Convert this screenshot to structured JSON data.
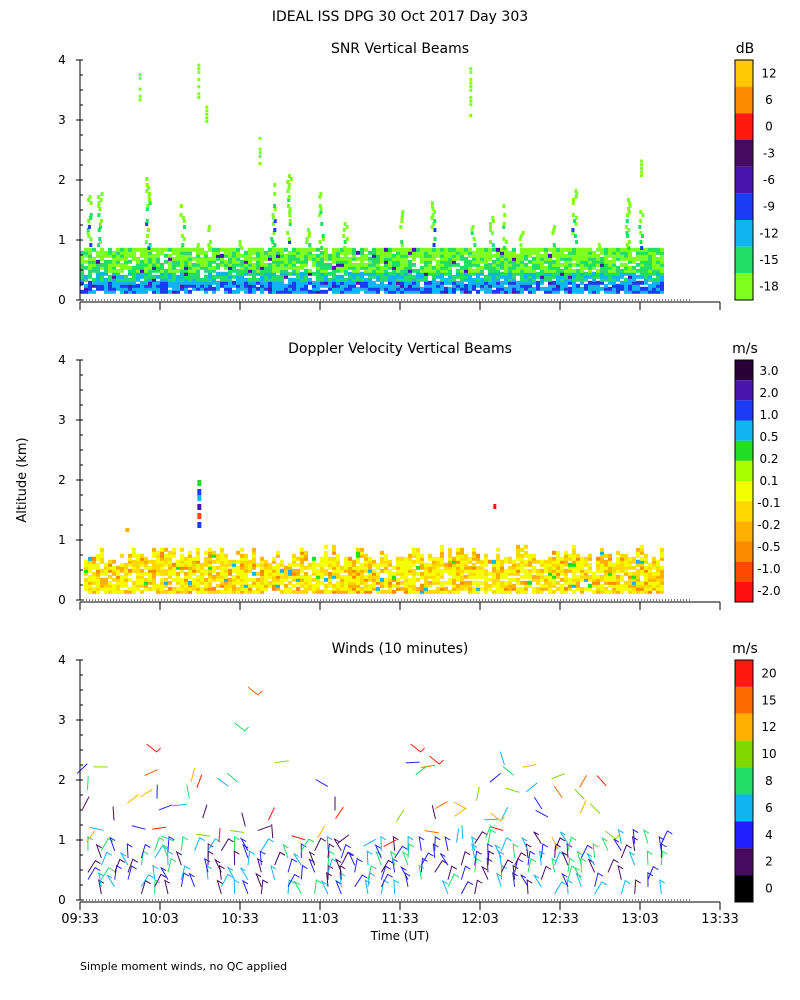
{
  "figure_title": "IDEAL ISS DPG  30 Oct 2017 Day 303",
  "y_axis_label": "Altitude (km)",
  "x_axis_label": "Time (UT)",
  "footnote": "Simple moment winds, no QC applied",
  "colors": {
    "snr_scale": [
      "#7fff1f",
      "#22dd66",
      "#10b4f0",
      "#1a3cf5",
      "#4a14b0",
      "#460a60",
      "#ff1a10",
      "#ff8c00",
      "#ffc800"
    ],
    "vel_scale": [
      "#ff1010",
      "#ff4a00",
      "#ff8c00",
      "#ffb000",
      "#ffd800",
      "#f4ff00",
      "#a8ff00",
      "#22dd22",
      "#10b4f0",
      "#1a3cf5",
      "#4a14b0",
      "#2a0038"
    ],
    "wind_scale": [
      "#000000",
      "#460a60",
      "#2020ff",
      "#10b4f0",
      "#22dd66",
      "#7fd800",
      "#ffb000",
      "#ff6a00",
      "#ff1a10"
    ]
  },
  "chart_data": [
    {
      "type": "heatmap",
      "title": "SNR Vertical Beams",
      "xlabel": "Time (UT)",
      "ylabel": "Altitude (km)",
      "xlim": [
        "09:33",
        "13:33"
      ],
      "ylim": [
        0,
        4
      ],
      "y_ticks": [
        "0",
        "1",
        "2",
        "3",
        "4"
      ],
      "colorbar_unit": "dB",
      "colorbar_labels": [
        "12",
        "6",
        "0",
        "-3",
        "-6",
        "-9",
        "-12",
        "-15",
        "-18"
      ],
      "data_time_range": [
        "09:33",
        "13:11"
      ],
      "approx_profile_by_altitude_km": {
        "0.15": -6,
        "0.3": -9,
        "0.45": -12,
        "0.6": -15,
        "0.75": -18,
        "1.0": -18,
        "2.0": -18
      }
    },
    {
      "type": "heatmap",
      "title": "Doppler Velocity Vertical Beams",
      "xlabel": "Time (UT)",
      "ylabel": "Altitude (km)",
      "xlim": [
        "09:33",
        "13:33"
      ],
      "ylim": [
        0,
        4
      ],
      "y_ticks": [
        "0",
        "1",
        "2",
        "3",
        "4"
      ],
      "colorbar_unit": "m/s",
      "colorbar_labels": [
        "3.0",
        "2.0",
        "1.0",
        "0.5",
        "0.2",
        "0.1",
        "-0.1",
        "-0.2",
        "-0.5",
        "-1.0",
        "-2.0"
      ],
      "data_time_range": [
        "09:33",
        "13:11"
      ],
      "typical_velocity_m_s": -0.1
    },
    {
      "type": "scatter",
      "title": "Winds (10 minutes)",
      "xlabel": "Time (UT)",
      "ylabel": "Altitude (km)",
      "xlim": [
        "09:33",
        "13:33"
      ],
      "ylim": [
        0,
        4
      ],
      "y_ticks": [
        "0",
        "1",
        "2",
        "3",
        "4"
      ],
      "x_ticks": [
        "09:33",
        "10:03",
        "10:33",
        "11:03",
        "11:33",
        "12:03",
        "12:33",
        "13:03",
        "13:33"
      ],
      "colorbar_unit": "m/s",
      "colorbar_labels": [
        "20",
        "15",
        "12",
        "10",
        "8",
        "6",
        "4",
        "2",
        "0"
      ],
      "data_time_range": [
        "09:33",
        "13:11"
      ],
      "typical_wind_speed_m_s": "2-8 below 1 km; up to 20 aloft"
    }
  ]
}
